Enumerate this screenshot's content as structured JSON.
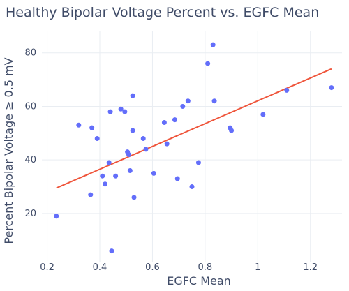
{
  "chart_data": {
    "type": "scatter",
    "title": "Healthy Bipolar Voltage Percent vs. EGFC Mean",
    "xlabel": "EGFC Mean",
    "ylabel": "Percent Bipolar Voltage ≥ 0.5 mV",
    "xlim": [
      0.18,
      1.32
    ],
    "ylim": [
      2,
      88
    ],
    "xticks": [
      0.2,
      0.4,
      0.6,
      0.8,
      1.0,
      1.2
    ],
    "xtick_labels": [
      "0.2",
      "0.4",
      "0.6",
      "0.8",
      "1",
      "1.2"
    ],
    "yticks": [
      20,
      40,
      60,
      80
    ],
    "ytick_labels": [
      "20",
      "40",
      "60",
      "80"
    ],
    "grid": true,
    "legend": "none",
    "colors": {
      "point": "#636efa",
      "trendline": "#ef553b",
      "grid": "#e9edf2",
      "text": "#3f4b67"
    },
    "points": [
      {
        "x": 0.235,
        "y": 19
      },
      {
        "x": 0.32,
        "y": 53
      },
      {
        "x": 0.365,
        "y": 27
      },
      {
        "x": 0.37,
        "y": 52
      },
      {
        "x": 0.39,
        "y": 48
      },
      {
        "x": 0.41,
        "y": 34
      },
      {
        "x": 0.42,
        "y": 31
      },
      {
        "x": 0.435,
        "y": 39
      },
      {
        "x": 0.44,
        "y": 58
      },
      {
        "x": 0.445,
        "y": 6
      },
      {
        "x": 0.46,
        "y": 34
      },
      {
        "x": 0.48,
        "y": 59
      },
      {
        "x": 0.495,
        "y": 58
      },
      {
        "x": 0.505,
        "y": 43
      },
      {
        "x": 0.51,
        "y": 42
      },
      {
        "x": 0.515,
        "y": 36
      },
      {
        "x": 0.525,
        "y": 64
      },
      {
        "x": 0.525,
        "y": 51
      },
      {
        "x": 0.53,
        "y": 26
      },
      {
        "x": 0.565,
        "y": 48
      },
      {
        "x": 0.575,
        "y": 44
      },
      {
        "x": 0.605,
        "y": 35
      },
      {
        "x": 0.645,
        "y": 54
      },
      {
        "x": 0.655,
        "y": 46
      },
      {
        "x": 0.685,
        "y": 55
      },
      {
        "x": 0.695,
        "y": 33
      },
      {
        "x": 0.715,
        "y": 60
      },
      {
        "x": 0.735,
        "y": 62
      },
      {
        "x": 0.75,
        "y": 30
      },
      {
        "x": 0.775,
        "y": 39
      },
      {
        "x": 0.81,
        "y": 76
      },
      {
        "x": 0.83,
        "y": 83
      },
      {
        "x": 0.835,
        "y": 62
      },
      {
        "x": 0.895,
        "y": 52
      },
      {
        "x": 0.9,
        "y": 51
      },
      {
        "x": 1.02,
        "y": 57
      },
      {
        "x": 1.11,
        "y": 66
      },
      {
        "x": 1.28,
        "y": 67
      }
    ],
    "trendline": {
      "x": [
        0.235,
        1.28
      ],
      "y": [
        29.5,
        74
      ]
    }
  }
}
